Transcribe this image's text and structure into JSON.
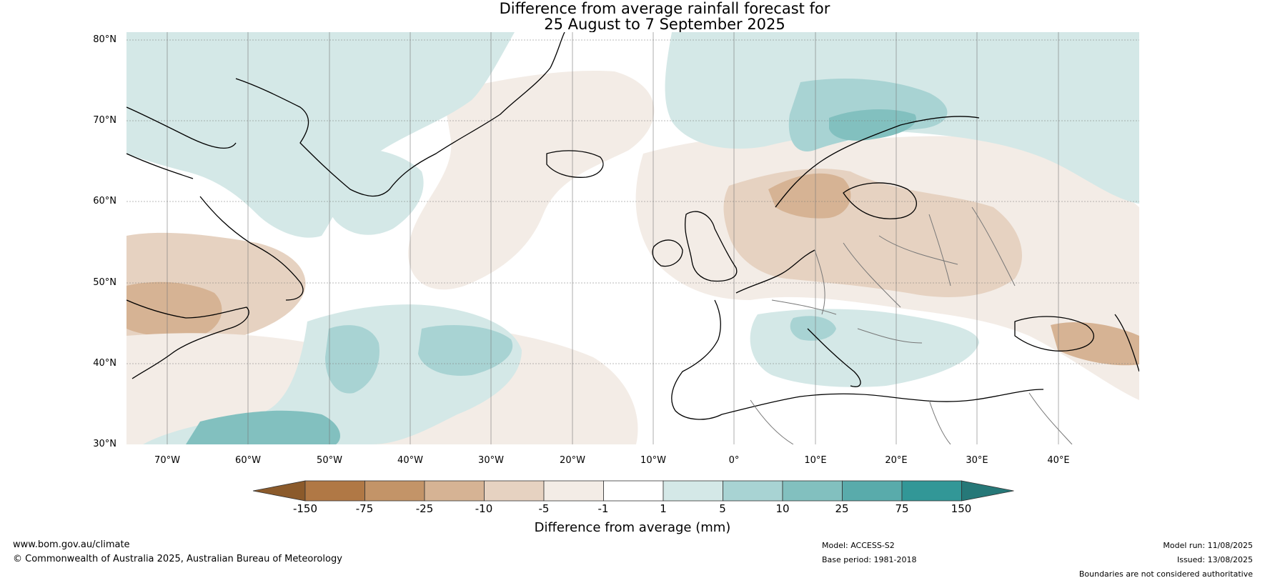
{
  "title": {
    "line1": "Difference from average rainfall forecast for",
    "line2": "25 August to 7 September 2025"
  },
  "map": {
    "lat_labels": [
      "80°N",
      "70°N",
      "60°N",
      "50°N",
      "40°N",
      "30°N"
    ],
    "lon_labels": [
      "70°W",
      "60°W",
      "50°W",
      "40°W",
      "30°W",
      "20°W",
      "10°W",
      "0°",
      "10°E",
      "20°E",
      "30°E",
      "40°E"
    ],
    "extent": {
      "lon_min": -75,
      "lon_max": 50,
      "lat_min": 30,
      "lat_max": 81
    }
  },
  "colorbar": {
    "ticks": [
      "-150",
      "-75",
      "-25",
      "-10",
      "-5",
      "-1",
      "1",
      "5",
      "10",
      "25",
      "75",
      "150"
    ],
    "colors": [
      "#8b5a2b",
      "#b07845",
      "#c39468",
      "#d6b394",
      "#e6d2c1",
      "#f3ece6",
      "#ffffff",
      "#d4e8e7",
      "#a8d3d3",
      "#82c0bf",
      "#59abab",
      "#329797",
      "#267878"
    ],
    "label": "Difference from average (mm)"
  },
  "footer": {
    "website": "www.bom.gov.au/climate",
    "copyright": "© Commonwealth of Australia 2025, Australian Bureau of Meteorology",
    "model": "Model: ACCESS-S2",
    "base_period": "Base period: 1981-2018",
    "model_run": "Model run: 11/08/2025",
    "issued": "Issued: 13/08/2025",
    "disclaimer": "Boundaries are not considered authoritative"
  }
}
